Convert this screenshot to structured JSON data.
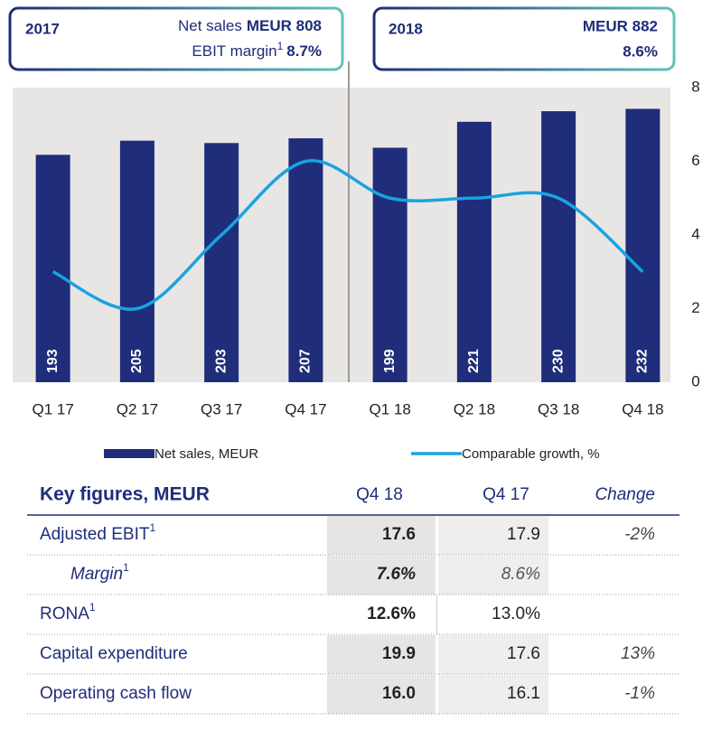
{
  "chart_data": {
    "type": "bar_line",
    "categories": [
      "Q1 17",
      "Q2 17",
      "Q3 17",
      "Q4 17",
      "Q1 18",
      "Q2 18",
      "Q3 18",
      "Q4 18"
    ],
    "series": [
      {
        "name": "Net sales, MEUR",
        "type": "bar",
        "color": "#1f2d7a",
        "values": [
          193,
          205,
          203,
          207,
          199,
          221,
          230,
          232
        ]
      },
      {
        "name": "Comparable growth, %",
        "type": "line",
        "axis": "y2",
        "color": "#1aa3e0",
        "values": [
          3,
          2,
          4,
          6,
          5,
          5,
          5,
          3
        ]
      }
    ],
    "ylim": [
      0,
      250
    ],
    "y2lim": [
      0,
      8
    ],
    "y2ticks": [
      0,
      2,
      4,
      6,
      8
    ]
  },
  "periods": [
    {
      "year": "2017",
      "net_sales_label": "Net sales",
      "net_sales": "MEUR 808",
      "ebit_label": "EBIT margin",
      "ebit_note": "1",
      "ebit_margin": "8.7%"
    },
    {
      "year": "2018",
      "net_sales": "MEUR 882",
      "ebit_margin": "8.6%"
    }
  ],
  "table": {
    "header": [
      "Key figures, MEUR",
      "Q4 18",
      "Q4 17",
      "Change"
    ],
    "rows": [
      {
        "label": "Adjusted EBIT",
        "note": "1",
        "q4_18": "17.6",
        "q4_17": "17.9",
        "change": "-2%"
      },
      {
        "label": "Margin",
        "note": "1",
        "q4_18": "7.6%",
        "q4_17": "8.6%"
      },
      {
        "label": "RONA",
        "note": "1",
        "q4_18": "12.6%",
        "q4_17": "13.0%"
      },
      {
        "label": "Capital expenditure",
        "q4_18": "19.9",
        "q4_17": "17.6",
        "change": "13%"
      },
      {
        "label": "Operating cash flow",
        "q4_18": "16.0",
        "q4_17": "16.1",
        "change": "-1%"
      }
    ]
  }
}
